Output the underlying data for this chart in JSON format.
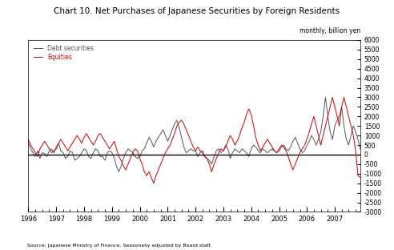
{
  "title": "Chart 10. Net Purchases of Japanese Securities by Foreign Residents",
  "subtitle": "monthly, billion yen",
  "source": "Source: Japanese Ministry of Finance. Seasonally adjusted by Board staff.",
  "ylabel_right": "monthly, billion yen",
  "ylim": [
    -3000,
    6000
  ],
  "yticks": [
    -3000,
    -2500,
    -2000,
    -1500,
    -1000,
    -500,
    0,
    500,
    1000,
    1500,
    2000,
    2500,
    3000,
    3500,
    4000,
    4500,
    5000,
    5500,
    6000
  ],
  "debt_color": "#555555",
  "equity_color": "#cc0000",
  "legend_debt": "Debt securities",
  "legend_equity": "Equities",
  "start_year": 1996,
  "start_month": 1,
  "end_year": 2006,
  "end_month": 12,
  "debt_data": [
    600,
    300,
    100,
    -100,
    200,
    -200,
    100,
    50,
    -100,
    200,
    300,
    100,
    400,
    600,
    200,
    100,
    -200,
    -100,
    200,
    100,
    -300,
    -200,
    -100,
    100,
    300,
    200,
    -100,
    -200,
    100,
    300,
    200,
    -100,
    -100,
    -300,
    100,
    200,
    100,
    -200,
    -600,
    -900,
    -600,
    -200,
    100,
    300,
    200,
    100,
    -100,
    -200,
    -100,
    200,
    300,
    600,
    900,
    700,
    400,
    700,
    900,
    1100,
    1300,
    1000,
    700,
    1000,
    1300,
    1600,
    1800,
    1400,
    900,
    400,
    100,
    200,
    300,
    200,
    200,
    -100,
    100,
    200,
    -100,
    -200,
    -300,
    -500,
    -100,
    200,
    300,
    100,
    200,
    500,
    300,
    -200,
    100,
    300,
    200,
    100,
    300,
    200,
    100,
    -100,
    300,
    500,
    400,
    200,
    100,
    300,
    200,
    100,
    200,
    300,
    200,
    100,
    200,
    400,
    500,
    300,
    200,
    400,
    700,
    900,
    600,
    300,
    100,
    200,
    500,
    700,
    1000,
    800,
    500,
    800,
    1200,
    2000,
    3000,
    2000,
    1200,
    800,
    1500,
    1800,
    2000,
    2500,
    1500,
    800,
    500,
    1000,
    1500,
    1200,
    800,
    300
  ],
  "equity_data": [
    800,
    500,
    300,
    100,
    -100,
    300,
    500,
    700,
    500,
    300,
    100,
    200,
    300,
    600,
    800,
    600,
    400,
    200,
    400,
    600,
    800,
    1000,
    800,
    600,
    900,
    1100,
    900,
    700,
    500,
    700,
    1000,
    1100,
    900,
    700,
    500,
    300,
    500,
    700,
    300,
    -100,
    -300,
    -600,
    -800,
    -500,
    -200,
    100,
    300,
    200,
    -200,
    -500,
    -900,
    -1100,
    -900,
    -1200,
    -1500,
    -1100,
    -800,
    -500,
    -200,
    100,
    300,
    500,
    800,
    1100,
    1500,
    1700,
    1800,
    1600,
    1300,
    1000,
    700,
    400,
    200,
    400,
    200,
    100,
    -100,
    -200,
    -500,
    -900,
    -500,
    -200,
    100,
    300,
    200,
    400,
    700,
    1000,
    800,
    500,
    700,
    1000,
    1400,
    1700,
    2100,
    2400,
    2100,
    1500,
    900,
    500,
    200,
    400,
    600,
    800,
    600,
    400,
    200,
    100,
    300,
    500,
    400,
    200,
    -100,
    -500,
    -800,
    -500,
    -200,
    100,
    300,
    500,
    800,
    1200,
    1600,
    2000,
    1500,
    1000,
    500,
    1000,
    1500,
    2000,
    2500,
    3000,
    2500,
    2000,
    1500,
    2500,
    3000,
    2500,
    2000,
    1500,
    1000,
    200,
    -1100,
    -1200
  ]
}
